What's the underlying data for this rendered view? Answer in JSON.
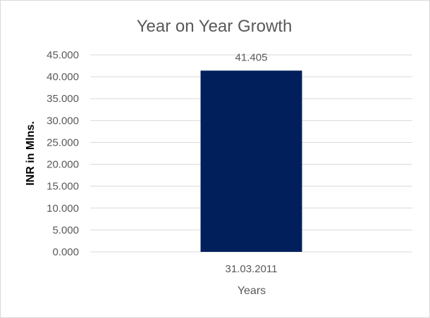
{
  "chart_data": {
    "type": "bar",
    "title": "Year on Year Growth",
    "xlabel": "Years",
    "ylabel": "INR in Mlns.",
    "categories": [
      "31.03.2011"
    ],
    "values": [
      41.405
    ],
    "data_labels": [
      "41.405"
    ],
    "ylim": [
      0,
      45
    ],
    "yticks": [
      "0.000",
      "5.000",
      "10.000",
      "15.000",
      "20.000",
      "25.000",
      "30.000",
      "35.000",
      "40.000",
      "45.000"
    ],
    "grid": true,
    "legend": "none",
    "colors": {
      "bar": "#001F5B",
      "grid": "#D9D9D9",
      "text": "#595959",
      "border": "#D9D9D9"
    }
  }
}
